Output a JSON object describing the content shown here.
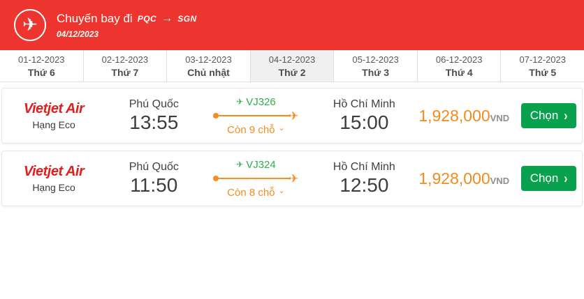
{
  "header": {
    "title_prefix": "Chuyến bay đi",
    "origin_code": "PQC",
    "arrow": "→",
    "dest_code": "SGN",
    "date": "04/12/2023"
  },
  "date_tabs": [
    {
      "date": "01-12-2023",
      "day": "Thứ 6",
      "selected": false
    },
    {
      "date": "02-12-2023",
      "day": "Thứ 7",
      "selected": false
    },
    {
      "date": "03-12-2023",
      "day": "Chủ nhật",
      "selected": false
    },
    {
      "date": "04-12-2023",
      "day": "Thứ 2",
      "selected": true
    },
    {
      "date": "05-12-2023",
      "day": "Thứ 3",
      "selected": false
    },
    {
      "date": "06-12-2023",
      "day": "Thứ 4",
      "selected": false
    },
    {
      "date": "07-12-2023",
      "day": "Thứ 5",
      "selected": false
    }
  ],
  "flights": [
    {
      "airline": "Vietjet Air",
      "fare_class": "Hạng Eco",
      "depart_city": "Phú Quốc",
      "depart_time": "13:55",
      "flight_number": "VJ326",
      "seats_left": "Còn 9 chỗ",
      "arrive_city": "Hồ Chí Minh",
      "arrive_time": "15:00",
      "price": "1,928,000",
      "currency": "VND",
      "select_label": "Chọn"
    },
    {
      "airline": "Vietjet Air",
      "fare_class": "Hạng Eco",
      "depart_city": "Phú Quốc",
      "depart_time": "11:50",
      "flight_number": "VJ324",
      "seats_left": "Còn 8 chỗ",
      "arrive_city": "Hồ Chí Minh",
      "arrive_time": "12:50",
      "price": "1,928,000",
      "currency": "VND",
      "select_label": "Chọn"
    }
  ],
  "colors": {
    "header_red": "#ee342e",
    "brand_red": "#e0201f",
    "flight_green": "#2eae4c",
    "accent_orange": "#f68b1f",
    "price_orange": "#f6891e",
    "button_green": "#0aa14e",
    "selected_tab_bg": "#f1f0f0"
  }
}
